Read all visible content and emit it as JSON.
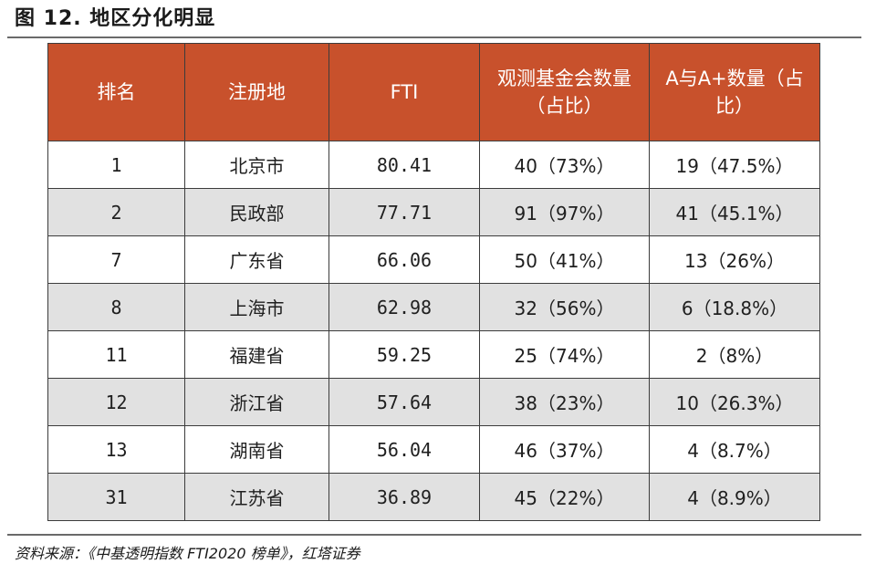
{
  "figure": {
    "title": "图 12. 地区分化明显"
  },
  "table": {
    "headers": [
      "排名",
      "注册地",
      "FTI",
      "观测基金会数量（占比）",
      "A与A+数量（占比）"
    ],
    "rows": [
      [
        "1",
        "北京市",
        "80.41",
        "40（73%）",
        "19（47.5%）"
      ],
      [
        "2",
        "民政部",
        "77.71",
        "91（97%）",
        "41（45.1%）"
      ],
      [
        "7",
        "广东省",
        "66.06",
        "50（41%）",
        "13（26%）"
      ],
      [
        "8",
        "上海市",
        "62.98",
        "32（56%）",
        "6（18.8%）"
      ],
      [
        "11",
        "福建省",
        "59.25",
        "25（74%）",
        "2（8%）"
      ],
      [
        "12",
        "浙江省",
        "57.64",
        "38（23%）",
        "10（26.3%）"
      ],
      [
        "13",
        "湖南省",
        "56.04",
        "46（37%）",
        "4（8.7%）"
      ],
      [
        "31",
        "江苏省",
        "36.89",
        "45（22%）",
        "4（8.9%）"
      ]
    ]
  },
  "source": "资料来源：《中基透明指数 FTI2020 榜单》，红塔证券",
  "colors": {
    "header_bg": "#c8512c",
    "header_text": "#ffffff",
    "stripe_bg": "#e1e1e1",
    "rule": "#6a6a6a"
  }
}
